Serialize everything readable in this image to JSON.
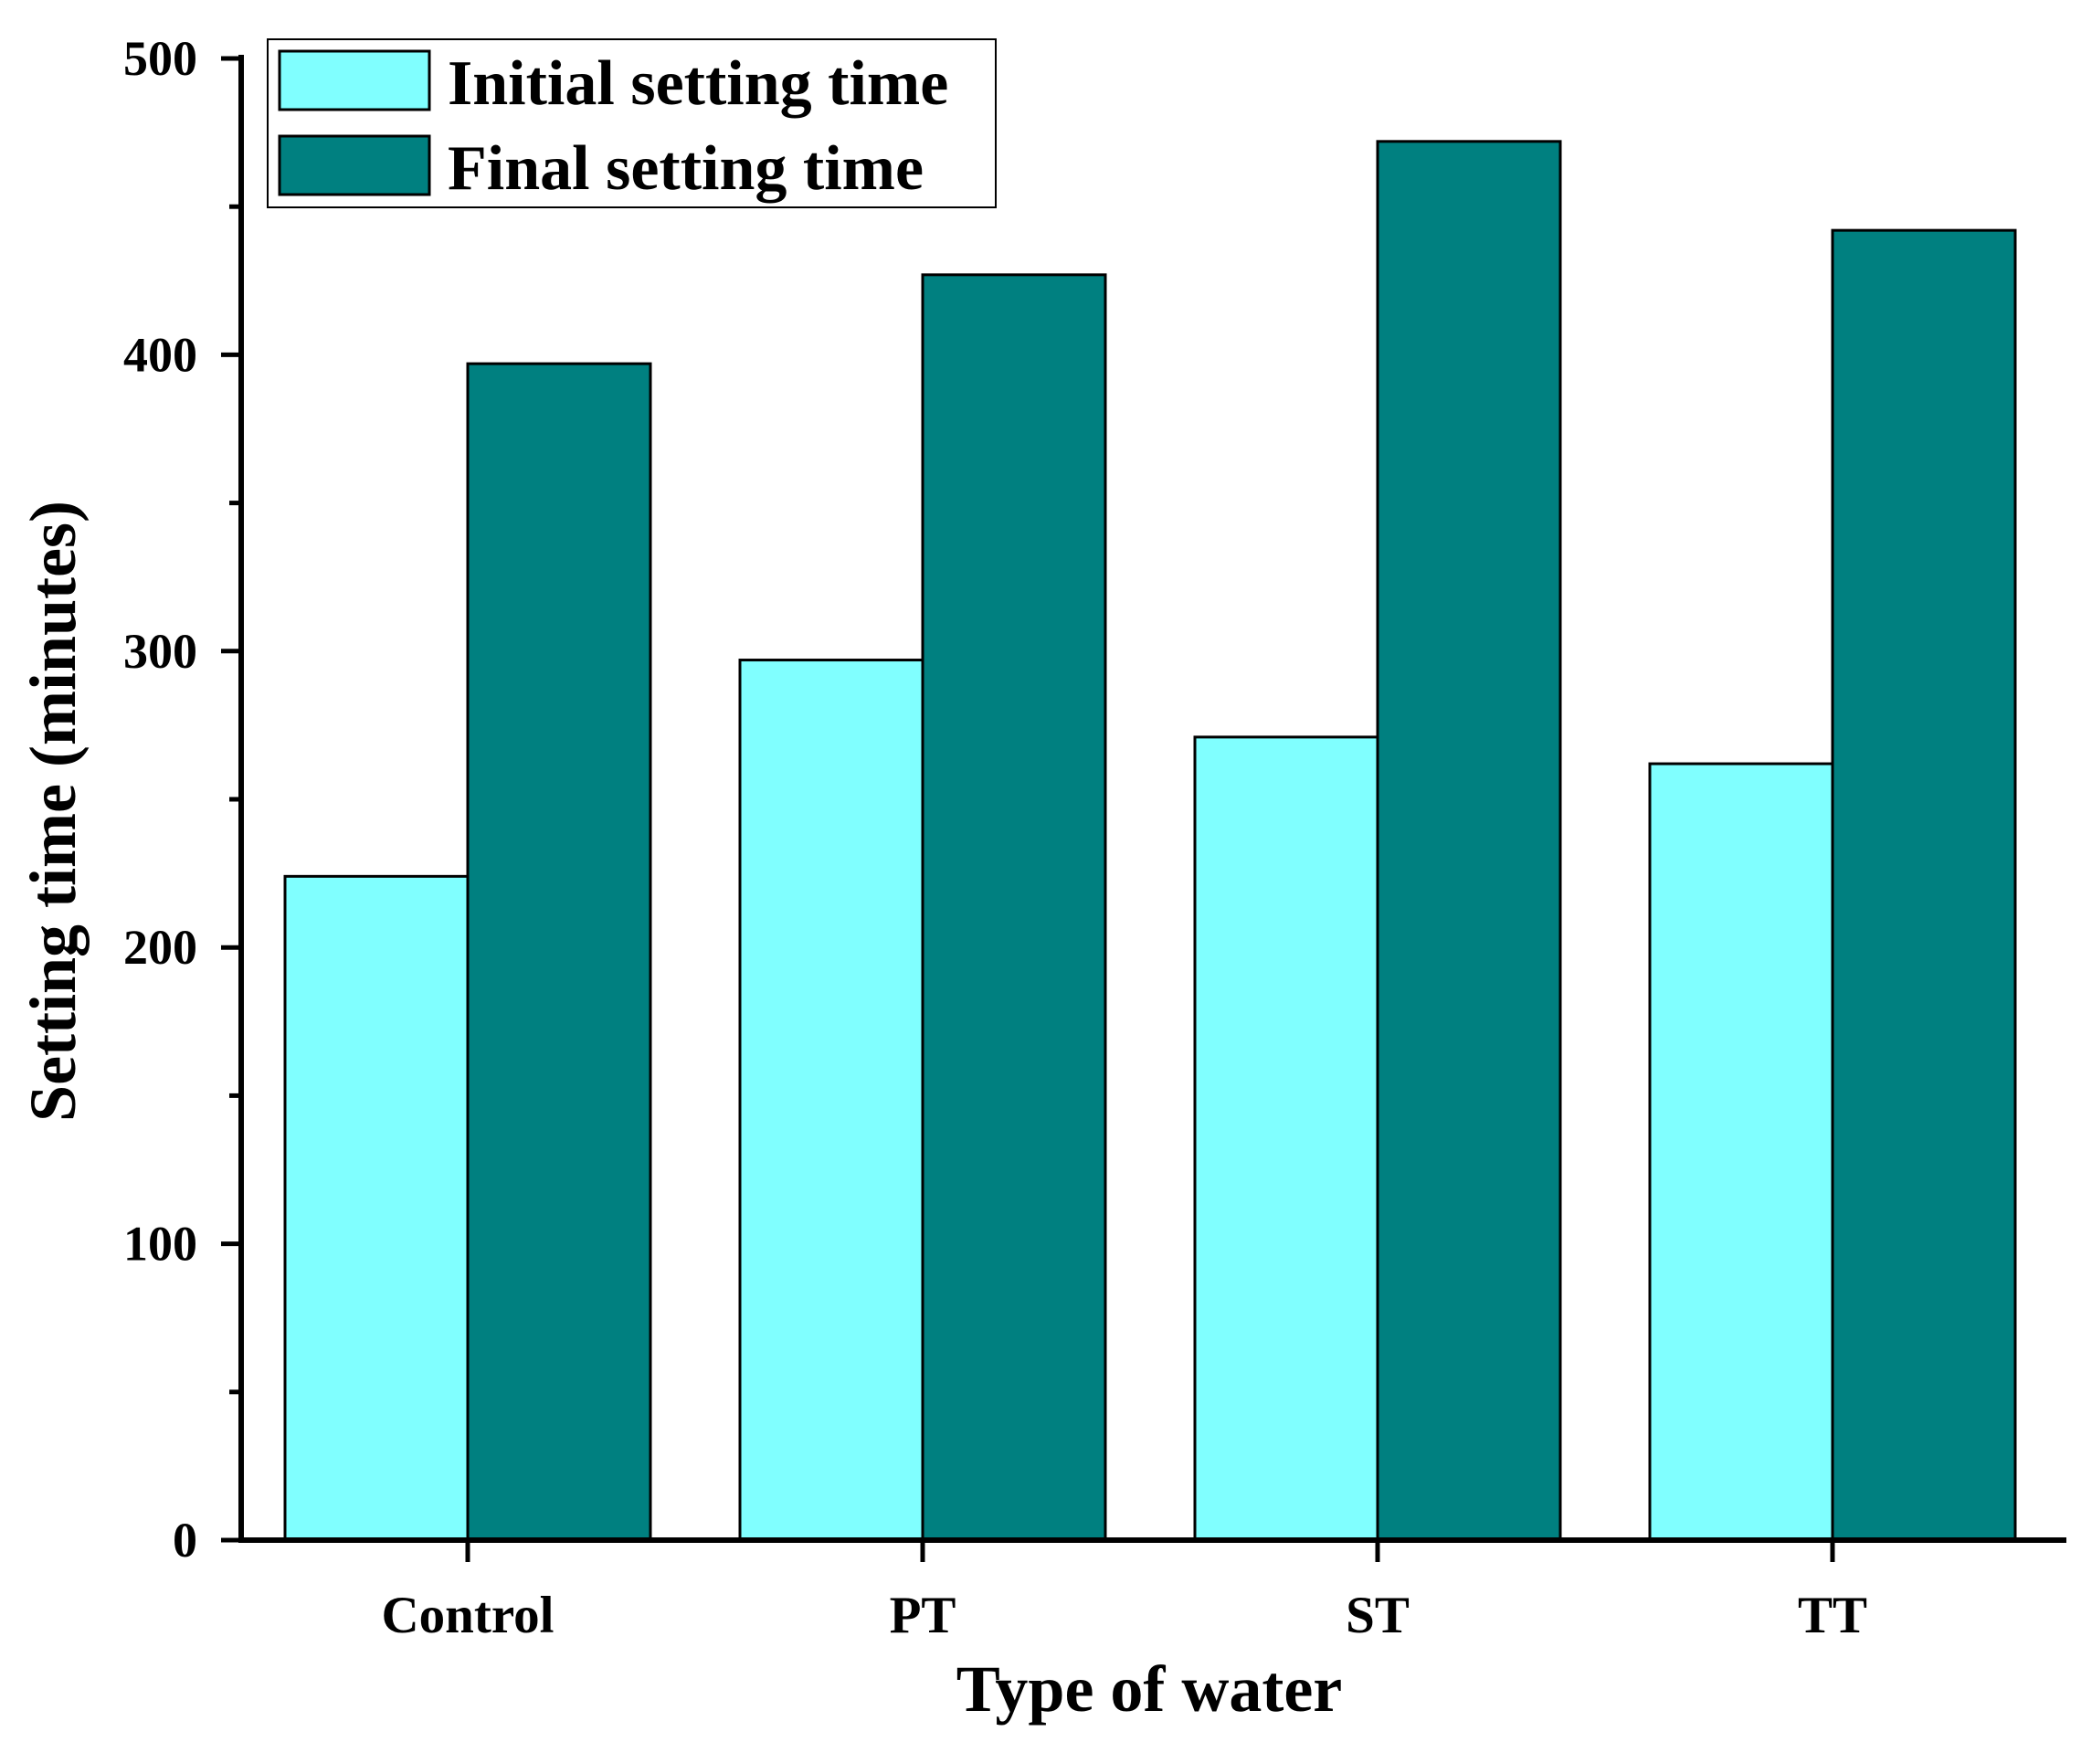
{
  "chart_data": {
    "type": "bar",
    "title": "",
    "xlabel": "Type of water",
    "ylabel": "Setting time (minutes)",
    "categories": [
      "Control",
      "PT",
      "ST",
      "TT"
    ],
    "series": [
      {
        "name": "Initial setting time",
        "color": "#80FFFF",
        "values": [
          224,
          297,
          271,
          262
        ]
      },
      {
        "name": "Final setting time",
        "color": "#008080",
        "values": [
          397,
          427,
          472,
          442
        ]
      }
    ],
    "ylim": [
      0,
      500
    ],
    "yticks": [
      "0",
      "100",
      "200",
      "300",
      "400",
      "500"
    ],
    "grid": false,
    "legend": "top-left"
  }
}
